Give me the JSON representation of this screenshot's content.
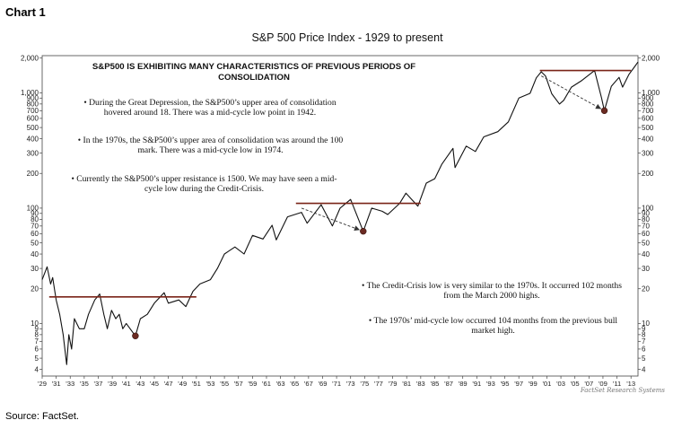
{
  "page": {
    "chart_label": "Chart 1",
    "source": "Source: FactSet."
  },
  "chart_data": {
    "type": "line",
    "title": "S&P 500 Price Index - 1929 to present",
    "subtitle": "S&P500 IS EXHIBITING MANY CHARACTERISTICS OF PREVIOUS PERIODS OF CONSOLIDATION",
    "xlabel": "",
    "ylabel": "",
    "y_scale": "log",
    "ylim": [
      3.5,
      2100
    ],
    "xlim": [
      1929,
      2014
    ],
    "grid": false,
    "legend": "none",
    "line_color": "#111111",
    "resistance_color": "#7a2418",
    "low_marker_color": "#6b2a22",
    "yticks": [
      2000,
      1000,
      900,
      800,
      700,
      600,
      500,
      400,
      300,
      200,
      100,
      90,
      80,
      70,
      60,
      50,
      40,
      30,
      20,
      10,
      9,
      8,
      7,
      6,
      5,
      4
    ],
    "ytick_labels": [
      "2,000",
      "1,000",
      "900",
      "800",
      "700",
      "600",
      "500",
      "400",
      "300",
      "200",
      "100",
      "90",
      "80",
      "70",
      "60",
      "50",
      "40",
      "30",
      "20",
      "10",
      "9",
      "8",
      "7",
      "6",
      "5",
      "4"
    ],
    "xticks": [
      1929,
      1931,
      1933,
      1935,
      1937,
      1939,
      1941,
      1943,
      1945,
      1947,
      1949,
      1951,
      1953,
      1955,
      1957,
      1959,
      1961,
      1963,
      1965,
      1967,
      1969,
      1971,
      1973,
      1975,
      1977,
      1979,
      1981,
      1983,
      1985,
      1987,
      1989,
      1991,
      1993,
      1995,
      1997,
      1999,
      2001,
      2003,
      2005,
      2007,
      2009,
      2011,
      2013
    ],
    "xtick_labels": [
      "'29",
      "'31",
      "'33",
      "'35",
      "'37",
      "'39",
      "'41",
      "'43",
      "'45",
      "'47",
      "'49",
      "'51",
      "'53",
      "'55",
      "'57",
      "'59",
      "'61",
      "'63",
      "'65",
      "'67",
      "'69",
      "'71",
      "'73",
      "'75",
      "'77",
      "'79",
      "'81",
      "'83",
      "'85",
      "'87",
      "'89",
      "'91",
      "'93",
      "'95",
      "'97",
      "'99",
      "'01",
      "'03",
      "'05",
      "'07",
      "'09",
      "'11",
      "'13"
    ],
    "series": [
      {
        "values": [
          {
            "x": 1929.0,
            "y": 24
          },
          {
            "x": 1929.7,
            "y": 31
          },
          {
            "x": 1930.2,
            "y": 22
          },
          {
            "x": 1930.5,
            "y": 25
          },
          {
            "x": 1931.0,
            "y": 16
          },
          {
            "x": 1931.5,
            "y": 12
          },
          {
            "x": 1932.0,
            "y": 8
          },
          {
            "x": 1932.5,
            "y": 4.4
          },
          {
            "x": 1932.8,
            "y": 8
          },
          {
            "x": 1933.2,
            "y": 6
          },
          {
            "x": 1933.6,
            "y": 11
          },
          {
            "x": 1934.3,
            "y": 9
          },
          {
            "x": 1935.0,
            "y": 9
          },
          {
            "x": 1935.6,
            "y": 12
          },
          {
            "x": 1936.5,
            "y": 16
          },
          {
            "x": 1937.2,
            "y": 18
          },
          {
            "x": 1937.8,
            "y": 12
          },
          {
            "x": 1938.3,
            "y": 9
          },
          {
            "x": 1938.9,
            "y": 13
          },
          {
            "x": 1939.5,
            "y": 11
          },
          {
            "x": 1940.0,
            "y": 12
          },
          {
            "x": 1940.5,
            "y": 9
          },
          {
            "x": 1941.0,
            "y": 10
          },
          {
            "x": 1942.3,
            "y": 7.8
          },
          {
            "x": 1943.0,
            "y": 11
          },
          {
            "x": 1944.0,
            "y": 12
          },
          {
            "x": 1945.0,
            "y": 15
          },
          {
            "x": 1946.4,
            "y": 18.5
          },
          {
            "x": 1947.0,
            "y": 15
          },
          {
            "x": 1948.5,
            "y": 16
          },
          {
            "x": 1949.5,
            "y": 14
          },
          {
            "x": 1950.5,
            "y": 19
          },
          {
            "x": 1951.5,
            "y": 22
          },
          {
            "x": 1953.0,
            "y": 24
          },
          {
            "x": 1954.0,
            "y": 30
          },
          {
            "x": 1955.0,
            "y": 40
          },
          {
            "x": 1956.5,
            "y": 46
          },
          {
            "x": 1957.8,
            "y": 40
          },
          {
            "x": 1959.0,
            "y": 58
          },
          {
            "x": 1960.5,
            "y": 54
          },
          {
            "x": 1961.8,
            "y": 71
          },
          {
            "x": 1962.4,
            "y": 53
          },
          {
            "x": 1964.0,
            "y": 84
          },
          {
            "x": 1966.0,
            "y": 92
          },
          {
            "x": 1966.8,
            "y": 74
          },
          {
            "x": 1968.8,
            "y": 107
          },
          {
            "x": 1970.4,
            "y": 70
          },
          {
            "x": 1971.5,
            "y": 100
          },
          {
            "x": 1973.0,
            "y": 119
          },
          {
            "x": 1974.8,
            "y": 63
          },
          {
            "x": 1976.0,
            "y": 100
          },
          {
            "x": 1977.5,
            "y": 94
          },
          {
            "x": 1978.3,
            "y": 88
          },
          {
            "x": 1980.0,
            "y": 110
          },
          {
            "x": 1980.9,
            "y": 135
          },
          {
            "x": 1982.6,
            "y": 104
          },
          {
            "x": 1983.8,
            "y": 165
          },
          {
            "x": 1985.0,
            "y": 180
          },
          {
            "x": 1986.0,
            "y": 240
          },
          {
            "x": 1987.6,
            "y": 330
          },
          {
            "x": 1987.9,
            "y": 225
          },
          {
            "x": 1989.5,
            "y": 345
          },
          {
            "x": 1990.8,
            "y": 310
          },
          {
            "x": 1992.0,
            "y": 415
          },
          {
            "x": 1994.0,
            "y": 460
          },
          {
            "x": 1995.5,
            "y": 560
          },
          {
            "x": 1997.0,
            "y": 900
          },
          {
            "x": 1998.6,
            "y": 990
          },
          {
            "x": 1999.5,
            "y": 1350
          },
          {
            "x": 2000.2,
            "y": 1520
          },
          {
            "x": 2000.8,
            "y": 1400
          },
          {
            "x": 2001.7,
            "y": 980
          },
          {
            "x": 2002.8,
            "y": 800
          },
          {
            "x": 2003.4,
            "y": 860
          },
          {
            "x": 2004.5,
            "y": 1120
          },
          {
            "x": 2006.0,
            "y": 1280
          },
          {
            "x": 2007.8,
            "y": 1560
          },
          {
            "x": 2008.8,
            "y": 900
          },
          {
            "x": 2009.2,
            "y": 700
          },
          {
            "x": 2010.2,
            "y": 1140
          },
          {
            "x": 2011.3,
            "y": 1360
          },
          {
            "x": 2011.8,
            "y": 1120
          },
          {
            "x": 2012.7,
            "y": 1440
          },
          {
            "x": 2013.5,
            "y": 1680
          },
          {
            "x": 2014.0,
            "y": 1850
          }
        ]
      }
    ],
    "resistance_lines": [
      {
        "x0": 1930.0,
        "x1": 1951.0,
        "y": 17
      },
      {
        "x0": 1965.2,
        "x1": 1983.0,
        "y": 110
      },
      {
        "x0": 2000.0,
        "x1": 2013.0,
        "y": 1560
      }
    ],
    "decline_arrows": [
      {
        "x0": 1966.0,
        "y0": 100,
        "x1": 1974.8,
        "y1": 63
      },
      {
        "x0": 2000.2,
        "y0": 1400,
        "x1": 2009.2,
        "y1": 700
      }
    ],
    "lows": [
      {
        "x": 1942.3,
        "y": 7.8
      },
      {
        "x": 1974.8,
        "y": 63
      },
      {
        "x": 2009.2,
        "y": 700
      }
    ],
    "annotations": [
      "•  During the Great Depression, the S&P500’s upper area of consolidation hovered around 18.  There was a mid-cycle low point in 1942.",
      "•  In the 1970s, the S&P500’s upper area of consolidation was around the 100 mark.  There was a mid-cycle low in 1974.",
      "•  Currently the S&P500’s upper resistance is 1500.  We may have seen a mid-cycle low during the Credit-Crisis.",
      "•  The Credit-Crisis low is very similar to the 1970s.  It occurred 102 months from the March 2000 highs.",
      "•  The 1970s’ mid-cycle low occurred 104 months from the previous bull market high."
    ],
    "watermark": "FactSet Research Systems"
  }
}
